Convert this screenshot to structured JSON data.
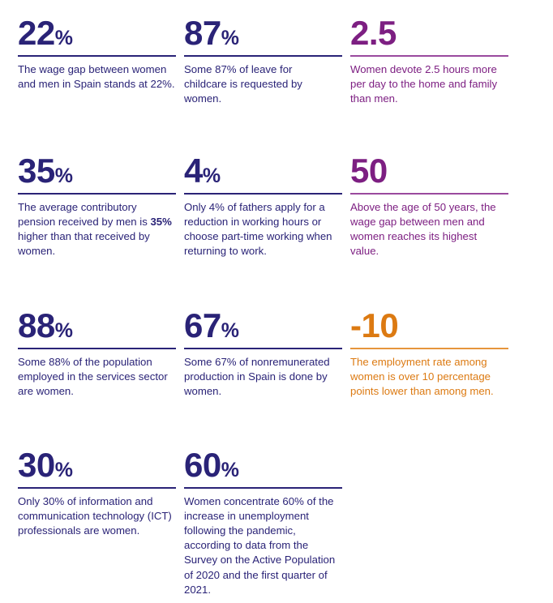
{
  "colors": {
    "navy": "#2a2377",
    "purple": "#7d1f82",
    "orange": "#dc7a12"
  },
  "stats": [
    {
      "value": "22",
      "unit": "%",
      "text": "The wage gap between women and men in Spain stands at 22%."
    },
    {
      "value": "87",
      "unit": "%",
      "text": "Some 87% of leave for childcare is requested by women."
    },
    {
      "value": "2.5",
      "unit": "",
      "text": "Women devote 2.5 hours more per day to the home and family than men."
    },
    {
      "value": "35",
      "unit": "%",
      "text_bold": "35%",
      "text_before": "The average contributory pension received by men is ",
      "text_after": " higher than that received by women."
    },
    {
      "value": "4",
      "unit": "%",
      "text": "Only 4% of fathers apply for a reduction in working hours or choose part-time working when returning to work."
    },
    {
      "value": "50",
      "unit": "",
      "text": "Above the age of 50 years, the wage gap between men and women reaches its highest value."
    },
    {
      "value": "88",
      "unit": "%",
      "text": "Some 88% of the population employed in the services sector are women."
    },
    {
      "value": "67",
      "unit": "%",
      "text": "Some 67% of nonremunerated production in Spain is done by women."
    },
    {
      "value": "-10",
      "unit": "",
      "text": "The employment rate among women is over 10 percentage points lower than among men."
    },
    {
      "value": "30",
      "unit": "%",
      "text": "Only 30% of information and communication technology (ICT) professionals are women."
    },
    {
      "value": "60",
      "unit": "%",
      "text": "Women concentrate 60% of the increase in unemployment following the pandemic, according to data from the Survey on the Active Population of 2020 and the first quarter of 2021."
    }
  ]
}
